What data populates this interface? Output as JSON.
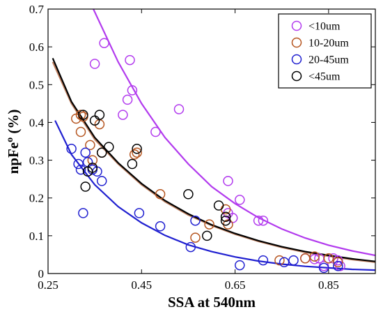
{
  "chart_data": {
    "type": "scatter",
    "xlabel": "SSA at 540nm",
    "ylabel_main": "npFe",
    "ylabel_sup": "o",
    "ylabel_unit": " (%)",
    "xlim": [
      0.25,
      0.95
    ],
    "ylim": [
      0,
      0.7
    ],
    "xticks": [
      "0.25",
      "0.45",
      "0.65",
      "0.85"
    ],
    "xtick_values": [
      0.25,
      0.45,
      0.65,
      0.85
    ],
    "yticks": [
      "0",
      "0.1",
      "0.2",
      "0.3",
      "0.4",
      "0.5",
      "0.6",
      "0.7"
    ],
    "ytick_values": [
      0,
      0.1,
      0.2,
      0.3,
      0.4,
      0.5,
      0.6,
      0.7
    ],
    "legend_position": "top-right",
    "grid": false,
    "series": [
      {
        "name": "<10um",
        "color": "#B23AEE",
        "fitColor": "#B23AEE",
        "fit": [
          [
            0.347,
            0.7
          ],
          [
            0.4,
            0.56
          ],
          [
            0.45,
            0.45
          ],
          [
            0.5,
            0.36
          ],
          [
            0.55,
            0.29
          ],
          [
            0.6,
            0.23
          ],
          [
            0.65,
            0.185
          ],
          [
            0.7,
            0.148
          ],
          [
            0.75,
            0.118
          ],
          [
            0.8,
            0.094
          ],
          [
            0.85,
            0.075
          ],
          [
            0.9,
            0.06
          ],
          [
            0.95,
            0.048
          ]
        ],
        "points": [
          [
            0.37,
            0.61
          ],
          [
            0.35,
            0.555
          ],
          [
            0.425,
            0.565
          ],
          [
            0.43,
            0.485
          ],
          [
            0.42,
            0.46
          ],
          [
            0.41,
            0.42
          ],
          [
            0.48,
            0.375
          ],
          [
            0.53,
            0.435
          ],
          [
            0.635,
            0.245
          ],
          [
            0.66,
            0.195
          ],
          [
            0.635,
            0.16
          ],
          [
            0.645,
            0.147
          ],
          [
            0.7,
            0.14
          ],
          [
            0.71,
            0.14
          ],
          [
            0.83,
            0.04
          ],
          [
            0.86,
            0.04
          ],
          [
            0.87,
            0.035
          ],
          [
            0.875,
            0.02
          ],
          [
            0.84,
            0.02
          ],
          [
            0.82,
            0.038
          ],
          [
            0.8,
            0.04
          ]
        ]
      },
      {
        "name": "10-20um",
        "color": "#B5541E",
        "fitColor": "#C08060",
        "fit": [
          [
            0.26,
            0.56
          ],
          [
            0.3,
            0.45
          ],
          [
            0.35,
            0.355
          ],
          [
            0.4,
            0.29
          ],
          [
            0.45,
            0.235
          ],
          [
            0.5,
            0.19
          ],
          [
            0.55,
            0.155
          ],
          [
            0.6,
            0.127
          ],
          [
            0.65,
            0.104
          ],
          [
            0.7,
            0.085
          ],
          [
            0.75,
            0.069
          ],
          [
            0.8,
            0.056
          ],
          [
            0.85,
            0.046
          ],
          [
            0.9,
            0.037
          ],
          [
            0.95,
            0.03
          ]
        ],
        "points": [
          [
            0.32,
            0.42
          ],
          [
            0.325,
            0.415
          ],
          [
            0.32,
            0.375
          ],
          [
            0.34,
            0.34
          ],
          [
            0.36,
            0.395
          ],
          [
            0.365,
            0.32
          ],
          [
            0.345,
            0.3
          ],
          [
            0.44,
            0.32
          ],
          [
            0.435,
            0.315
          ],
          [
            0.49,
            0.21
          ],
          [
            0.565,
            0.095
          ],
          [
            0.63,
            0.17
          ],
          [
            0.635,
            0.13
          ],
          [
            0.595,
            0.13
          ],
          [
            0.745,
            0.035
          ],
          [
            0.8,
            0.04
          ],
          [
            0.82,
            0.045
          ],
          [
            0.85,
            0.04
          ],
          [
            0.87,
            0.03
          ],
          [
            0.31,
            0.41
          ]
        ]
      },
      {
        "name": "20-45um",
        "color": "#1F1FD0",
        "fitColor": "#1F1FD0",
        "fit": [
          [
            0.265,
            0.405
          ],
          [
            0.3,
            0.315
          ],
          [
            0.35,
            0.235
          ],
          [
            0.4,
            0.177
          ],
          [
            0.45,
            0.134
          ],
          [
            0.5,
            0.101
          ],
          [
            0.55,
            0.076
          ],
          [
            0.6,
            0.058
          ],
          [
            0.65,
            0.044
          ],
          [
            0.7,
            0.033
          ],
          [
            0.75,
            0.025
          ],
          [
            0.8,
            0.019
          ],
          [
            0.85,
            0.015
          ],
          [
            0.9,
            0.011
          ],
          [
            0.95,
            0.009
          ]
        ],
        "points": [
          [
            0.3,
            0.33
          ],
          [
            0.315,
            0.29
          ],
          [
            0.32,
            0.275
          ],
          [
            0.33,
            0.32
          ],
          [
            0.335,
            0.295
          ],
          [
            0.345,
            0.275
          ],
          [
            0.355,
            0.27
          ],
          [
            0.325,
            0.16
          ],
          [
            0.365,
            0.245
          ],
          [
            0.445,
            0.16
          ],
          [
            0.49,
            0.125
          ],
          [
            0.555,
            0.07
          ],
          [
            0.565,
            0.14
          ],
          [
            0.66,
            0.022
          ],
          [
            0.71,
            0.035
          ],
          [
            0.755,
            0.03
          ],
          [
            0.775,
            0.035
          ],
          [
            0.84,
            0.015
          ],
          [
            0.87,
            0.02
          ]
        ]
      },
      {
        "name": "<45um",
        "color": "#000000",
        "fitColor": "#000000",
        "fit": [
          [
            0.26,
            0.57
          ],
          [
            0.3,
            0.455
          ],
          [
            0.35,
            0.36
          ],
          [
            0.4,
            0.293
          ],
          [
            0.45,
            0.238
          ],
          [
            0.5,
            0.193
          ],
          [
            0.55,
            0.158
          ],
          [
            0.6,
            0.129
          ],
          [
            0.65,
            0.106
          ],
          [
            0.7,
            0.087
          ],
          [
            0.75,
            0.071
          ],
          [
            0.8,
            0.058
          ],
          [
            0.85,
            0.048
          ],
          [
            0.9,
            0.039
          ],
          [
            0.95,
            0.032
          ]
        ],
        "points": [
          [
            0.36,
            0.42
          ],
          [
            0.35,
            0.405
          ],
          [
            0.325,
            0.42
          ],
          [
            0.345,
            0.28
          ],
          [
            0.335,
            0.27
          ],
          [
            0.33,
            0.23
          ],
          [
            0.365,
            0.32
          ],
          [
            0.38,
            0.335
          ],
          [
            0.43,
            0.29
          ],
          [
            0.44,
            0.33
          ],
          [
            0.55,
            0.21
          ],
          [
            0.59,
            0.1
          ],
          [
            0.615,
            0.18
          ],
          [
            0.63,
            0.14
          ],
          [
            0.63,
            0.15
          ]
        ]
      }
    ]
  }
}
